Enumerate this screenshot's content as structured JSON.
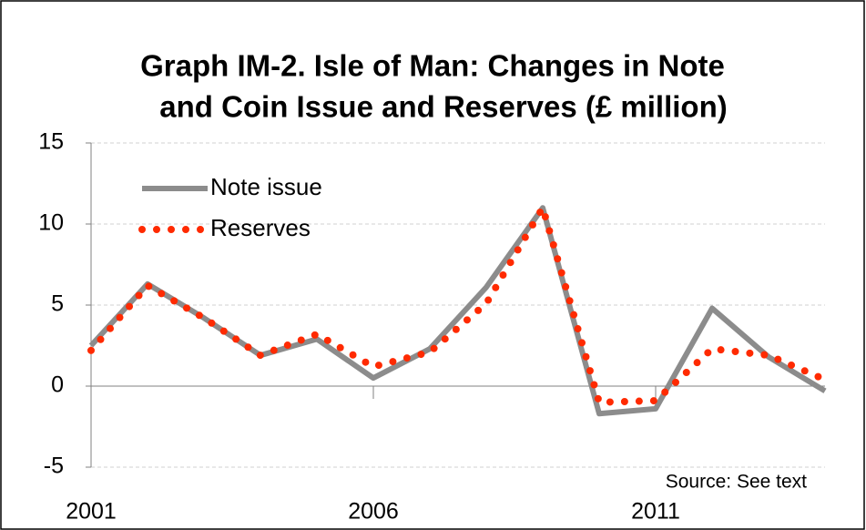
{
  "chart_data": {
    "type": "line",
    "title": [
      "Graph IM-2. Isle of Man: Changes in Note",
      "and Coin Issue and Reserves (£ million)"
    ],
    "annotation": "Source: See text",
    "categories": [
      "2001",
      null,
      null,
      null,
      null,
      "2006",
      null,
      null,
      null,
      null,
      "2011",
      null,
      null,
      null
    ],
    "series": [
      {
        "name": "Note issue",
        "color": "#8c8c8c",
        "style": "solid",
        "values": [
          2.5,
          6.3,
          4.2,
          1.9,
          2.9,
          0.5,
          2.3,
          6.1,
          11.0,
          -1.7,
          -1.4,
          4.8,
          1.8,
          -0.3
        ]
      },
      {
        "name": "Reserves",
        "color": "#ff2a00",
        "style": "dotted",
        "values": [
          2.2,
          6.2,
          4.2,
          1.9,
          3.2,
          1.2,
          2.1,
          5.1,
          11.0,
          -1.0,
          -0.9,
          2.3,
          1.9,
          0.4
        ]
      }
    ],
    "ylim": [
      -5,
      15
    ],
    "yticks": [
      -5,
      0,
      5,
      10,
      15
    ],
    "grid": true,
    "legend": "upper left"
  }
}
